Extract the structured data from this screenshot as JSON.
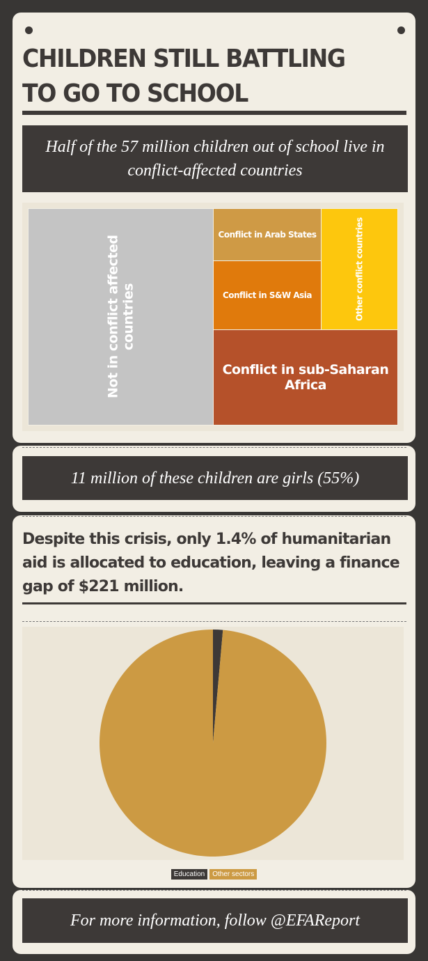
{
  "title": "CHILDREN STILL BATTLING TO GO TO SCHOOL",
  "banner1": "Half of the 57 million children out of school live in conflict-affected countries",
  "banner2": "11 million of these children are girls (55%)",
  "statement": "Despite this crisis, only 1.4% of humanitarian aid is allocated to education, leaving a finance gap of $221 million.",
  "banner3": "For more information, follow @EFAReport",
  "chart_data": [
    {
      "type": "treemap",
      "unit": "million children (estimated from area)",
      "categories": [
        "Not in conflict affected countries",
        "Conflict in Arab States",
        "Conflict in S&W Asia",
        "Other conflict countries",
        "Conflict in sub-Saharan Africa"
      ],
      "values": [
        28.6,
        4.0,
        5.3,
        6.6,
        12.6
      ],
      "colors": [
        "#c4c4c4",
        "#cf9a45",
        "#e07a0c",
        "#fdc70d",
        "#b5512a"
      ]
    },
    {
      "type": "pie",
      "categories": [
        "Education",
        "Other sectors"
      ],
      "values": [
        1.4,
        98.6
      ],
      "colors": [
        "#3d3937",
        "#cc9a43"
      ],
      "legend": "bottom"
    }
  ]
}
